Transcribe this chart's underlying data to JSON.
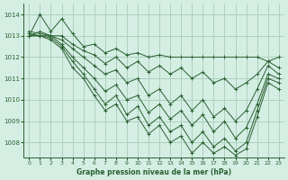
{
  "title": "Graphe pression niveau de la mer (hPa)",
  "bg_color": "#d4eee4",
  "grid_color": "#aed0c0",
  "line_color": "#2a6030",
  "xlim": [
    -0.5,
    23.5
  ],
  "ylim": [
    1007.3,
    1014.5
  ],
  "yticks": [
    1008,
    1009,
    1010,
    1011,
    1012,
    1013,
    1014
  ],
  "xticks": [
    0,
    1,
    2,
    3,
    4,
    5,
    6,
    7,
    8,
    9,
    10,
    11,
    12,
    13,
    14,
    15,
    16,
    17,
    18,
    19,
    20,
    21,
    22,
    23
  ],
  "series": [
    [
      1013.0,
      1014.0,
      1013.2,
      1013.8,
      1013.1,
      1012.5,
      1012.6,
      1012.2,
      1012.4,
      1012.1,
      1012.2,
      1012.0,
      1012.1,
      1012.0,
      1012.0,
      1012.0,
      1012.0,
      1012.0,
      1012.0,
      1012.0,
      1012.0,
      1012.0,
      1011.8,
      1012.0
    ],
    [
      1013.0,
      1013.2,
      1013.0,
      1013.0,
      1012.6,
      1012.3,
      1012.1,
      1011.7,
      1012.0,
      1011.5,
      1011.8,
      1011.3,
      1011.6,
      1011.2,
      1011.5,
      1011.0,
      1011.3,
      1010.8,
      1011.0,
      1010.5,
      1010.8,
      1011.2,
      1011.8,
      1011.5
    ],
    [
      1013.2,
      1013.1,
      1013.0,
      1012.8,
      1012.4,
      1012.0,
      1011.6,
      1011.2,
      1011.4,
      1010.8,
      1011.0,
      1010.2,
      1010.5,
      1009.8,
      1010.2,
      1009.5,
      1010.0,
      1009.2,
      1009.6,
      1009.0,
      1009.5,
      1010.5,
      1011.6,
      1011.2
    ],
    [
      1013.0,
      1013.0,
      1013.0,
      1012.6,
      1012.0,
      1011.5,
      1011.0,
      1010.4,
      1010.7,
      1010.0,
      1010.2,
      1009.4,
      1009.8,
      1009.1,
      1009.5,
      1008.8,
      1009.3,
      1008.5,
      1009.0,
      1008.2,
      1008.7,
      1009.8,
      1011.2,
      1011.0
    ],
    [
      1013.1,
      1013.0,
      1012.9,
      1012.5,
      1011.8,
      1011.2,
      1010.5,
      1009.8,
      1010.2,
      1009.3,
      1009.7,
      1008.8,
      1009.2,
      1008.5,
      1008.8,
      1008.0,
      1008.5,
      1007.8,
      1008.2,
      1007.6,
      1008.0,
      1009.5,
      1011.0,
      1010.8
    ],
    [
      1013.0,
      1013.0,
      1012.8,
      1012.4,
      1011.5,
      1011.0,
      1010.2,
      1009.5,
      1009.8,
      1009.0,
      1009.2,
      1008.4,
      1008.8,
      1008.0,
      1008.3,
      1007.5,
      1008.0,
      1007.5,
      1007.8,
      1007.4,
      1007.7,
      1009.2,
      1010.8,
      1010.5
    ]
  ]
}
